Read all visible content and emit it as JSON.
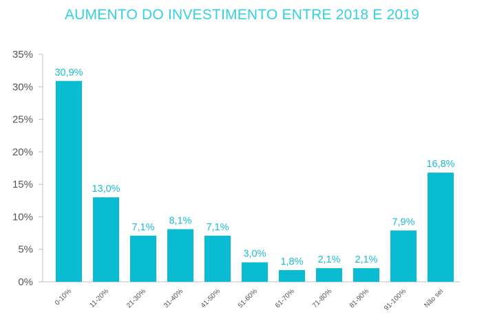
{
  "chart_data": {
    "type": "bar",
    "title": "AUMENTO DO INVESTIMENTO ENTRE 2018 E 2019",
    "categories": [
      "0-10%",
      "11-20%",
      "21-30%",
      "31-40%",
      "41-50%",
      "51-60%",
      "61-70%",
      "71-80%",
      "81-90%",
      "91-100%",
      "Não sei"
    ],
    "values": [
      30.9,
      13.0,
      7.1,
      8.1,
      7.1,
      3.0,
      1.8,
      2.1,
      2.1,
      7.9,
      16.8
    ],
    "value_labels": [
      "30,9%",
      "13,0%",
      "7,1%",
      "8,1%",
      "7,1%",
      "3,0%",
      "1,8%",
      "2,1%",
      "2,1%",
      "7,9%",
      "16,8%"
    ],
    "ylim": [
      0,
      35
    ],
    "yticks": [
      0,
      5,
      10,
      15,
      20,
      25,
      30,
      35
    ],
    "ytick_labels": [
      "0%",
      "5%",
      "10%",
      "15%",
      "20%",
      "25%",
      "30%",
      "35%"
    ],
    "xlabel": "",
    "ylabel": "",
    "grid": false,
    "bar_color": "#0abcd1",
    "label_color": "#1bbcd0",
    "title_color": "#33d1e0"
  }
}
